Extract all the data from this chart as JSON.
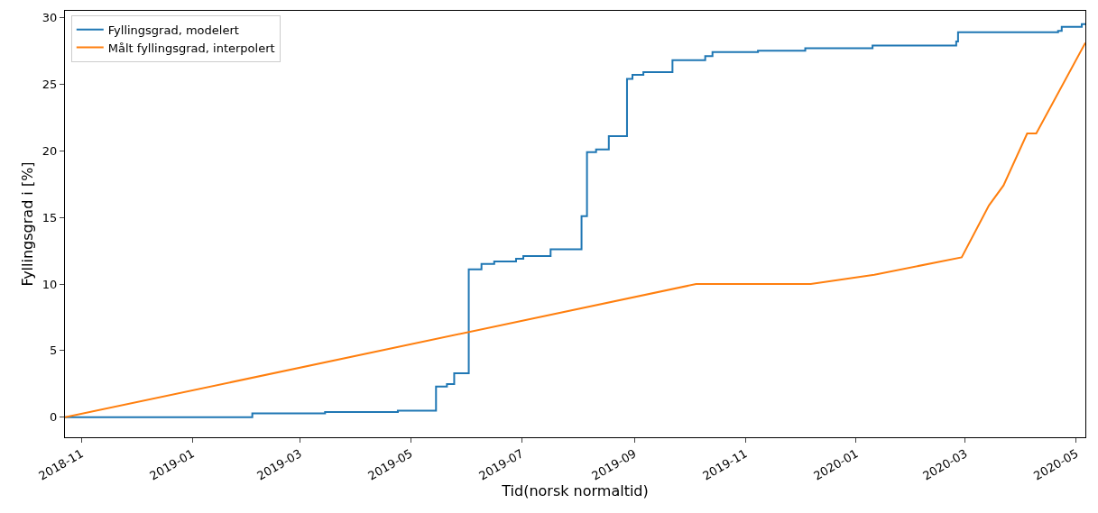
{
  "chart_data": {
    "type": "step",
    "xlabel": "Tid(norsk normaltid)",
    "ylabel": "Fyllingsgrad i [%]",
    "xlim": [
      "2018-10-23",
      "2020-05-06"
    ],
    "xticks": [
      {
        "value": "2018-11-01",
        "label": "2018-11"
      },
      {
        "value": "2019-01-01",
        "label": "2019-01"
      },
      {
        "value": "2019-03-01",
        "label": "2019-03"
      },
      {
        "value": "2019-05-01",
        "label": "2019-05"
      },
      {
        "value": "2019-07-01",
        "label": "2019-07"
      },
      {
        "value": "2019-09-01",
        "label": "2019-09"
      },
      {
        "value": "2019-11-01",
        "label": "2019-11"
      },
      {
        "value": "2020-01-01",
        "label": "2020-01"
      },
      {
        "value": "2020-03-01",
        "label": "2020-03"
      },
      {
        "value": "2020-05-01",
        "label": "2020-05"
      }
    ],
    "ylim": [
      -1.5,
      30.5
    ],
    "yticks": [
      0,
      5,
      10,
      15,
      20,
      25,
      30
    ],
    "grid": false,
    "legend": "top left",
    "series": [
      {
        "name": "Fyllingsgrad, modelert",
        "color": "#1f77b4",
        "x": [
          "2018-10-23",
          "2019-02-03",
          "2019-03-15",
          "2019-04-24",
          "2019-05-15",
          "2019-05-21",
          "2019-05-25",
          "2019-06-02",
          "2019-06-09",
          "2019-06-16",
          "2019-06-28",
          "2019-07-02",
          "2019-07-17",
          "2019-08-03",
          "2019-08-06",
          "2019-08-11",
          "2019-08-18",
          "2019-08-28",
          "2019-08-31",
          "2019-09-06",
          "2019-09-22",
          "2019-10-10",
          "2019-10-14",
          "2019-11-08",
          "2019-12-04",
          "2020-01-10",
          "2020-02-25",
          "2020-02-26",
          "2020-04-21",
          "2020-04-23",
          "2020-05-04",
          "2020-05-06"
        ],
        "values": [
          0,
          0.3,
          0.4,
          0.5,
          2.3,
          2.5,
          3.3,
          11.1,
          11.5,
          11.7,
          11.9,
          12.1,
          12.6,
          15.1,
          19.9,
          20.1,
          21.1,
          25.4,
          25.7,
          25.9,
          26.8,
          27.1,
          27.4,
          27.5,
          27.7,
          27.9,
          28.2,
          28.9,
          29.0,
          29.3,
          29.5,
          29.5
        ]
      },
      {
        "name": "Målt fyllingsgrad, interpolert",
        "color": "#ff7f0e",
        "type": "line",
        "x": [
          "2018-10-23",
          "2019-10-05",
          "2019-12-07",
          "2020-01-11",
          "2020-02-28",
          "2020-03-14",
          "2020-03-22",
          "2020-04-04",
          "2020-04-09",
          "2020-05-06"
        ],
        "values": [
          0,
          10,
          10,
          10.7,
          12,
          15.9,
          17.4,
          21.3,
          21.3,
          28.1
        ]
      }
    ]
  }
}
